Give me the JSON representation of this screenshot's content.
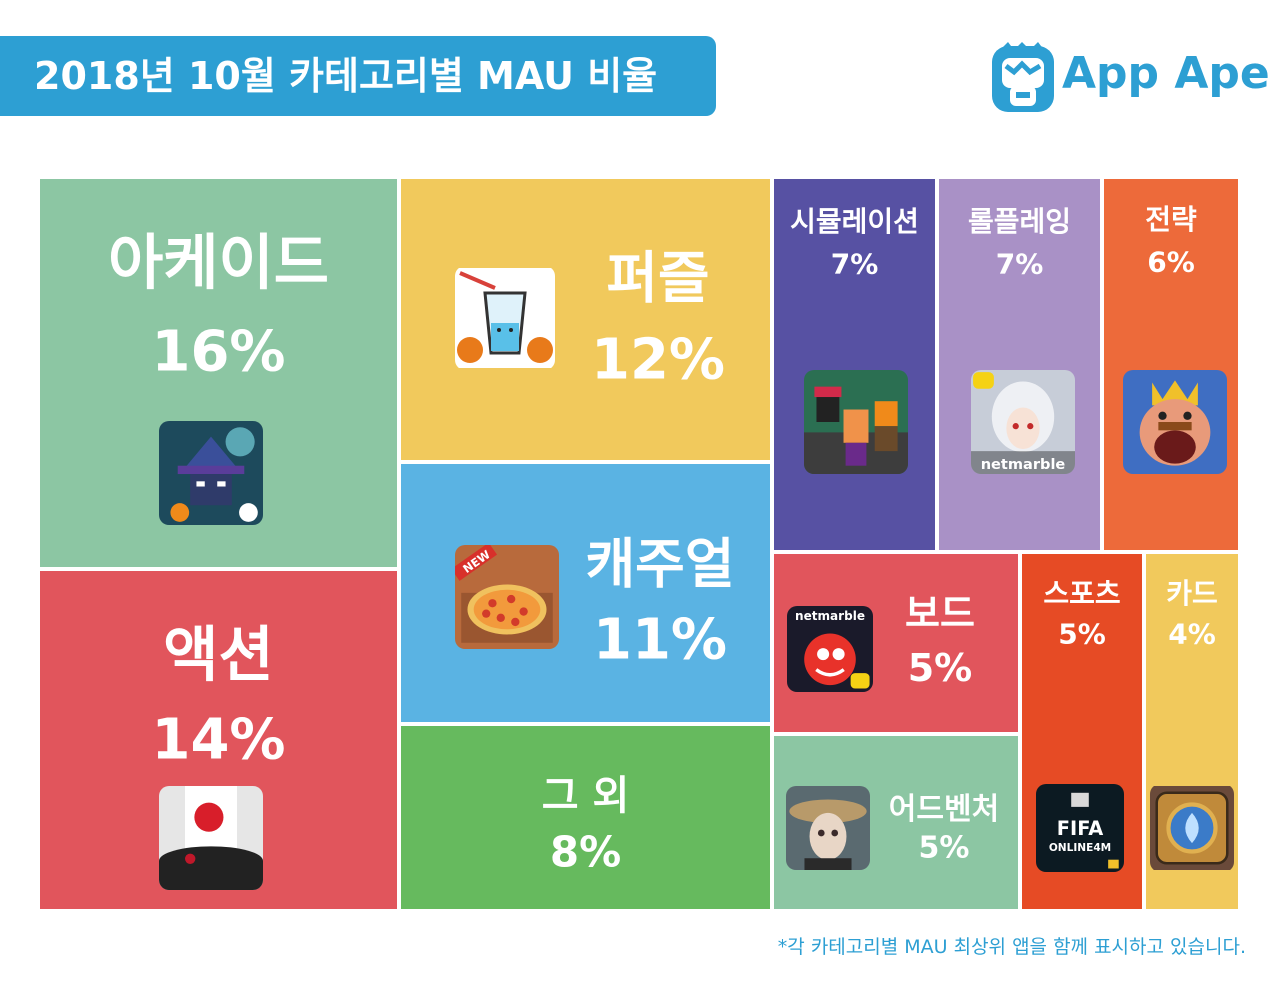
{
  "header": {
    "title": "2018년 10월 카테고리별 MAU 비율",
    "logo_text": "App Ape"
  },
  "footnote": "*각 카테고리별 MAU 최상위 앱을 함께 표시하고 있습니다.",
  "colors": {
    "title_bg": "#2d9fd3",
    "arcade": "#8cc6a3",
    "action": "#e1555c",
    "puzzle": "#f1c95c",
    "casual": "#5ab3e3",
    "others": "#66ba5e",
    "simulation": "#5751a3",
    "roleplaying": "#a991c6",
    "strategy": "#ed6a3a",
    "board": "#e1555c",
    "adventure": "#8cc6a3",
    "sports": "#e64b25",
    "card": "#f1c95c"
  },
  "chart_data": {
    "type": "treemap",
    "title": "2018년 10월 카테고리별 MAU 비율",
    "unit": "%",
    "categories": [
      {
        "key": "arcade",
        "name": "아케이드",
        "value": 16,
        "label": "16%",
        "icon": "wizard-game-icon"
      },
      {
        "key": "action",
        "name": "액션",
        "value": 14,
        "label": "14%",
        "icon": "helix-jump-icon"
      },
      {
        "key": "puzzle",
        "name": "퍼즐",
        "value": 12,
        "label": "12%",
        "icon": "happy-glass-icon"
      },
      {
        "key": "casual",
        "name": "캐주얼",
        "value": 11,
        "label": "11%",
        "icon": "pizza-game-icon"
      },
      {
        "key": "others",
        "name": "그 외",
        "value": 8,
        "label": "8%",
        "icon": ""
      },
      {
        "key": "simulation",
        "name": "시뮬레이션",
        "value": 7,
        "label": "7%",
        "icon": "pixel-characters-icon"
      },
      {
        "key": "roleplaying",
        "name": "롤플레잉",
        "value": 7,
        "label": "7%",
        "icon": "netmarble-rpg-icon"
      },
      {
        "key": "strategy",
        "name": "전략",
        "value": 6,
        "label": "6%",
        "icon": "clash-royale-icon"
      },
      {
        "key": "board",
        "name": "보드",
        "value": 5,
        "label": "5%",
        "icon": "netmarble-board-icon"
      },
      {
        "key": "adventure",
        "name": "어드벤처",
        "value": 5,
        "label": "5%",
        "icon": "identity-v-icon"
      },
      {
        "key": "sports",
        "name": "스포츠",
        "value": 5,
        "label": "5%",
        "icon": "fifa-online-icon"
      },
      {
        "key": "card",
        "name": "카드",
        "value": 4,
        "label": "4%",
        "icon": "hearthstone-icon"
      }
    ],
    "icon_texts": {
      "netmarble": "netmarble",
      "fifa": "FIFA",
      "fifa_sub": "ONLINE4M",
      "new_badge": "NEW"
    }
  }
}
